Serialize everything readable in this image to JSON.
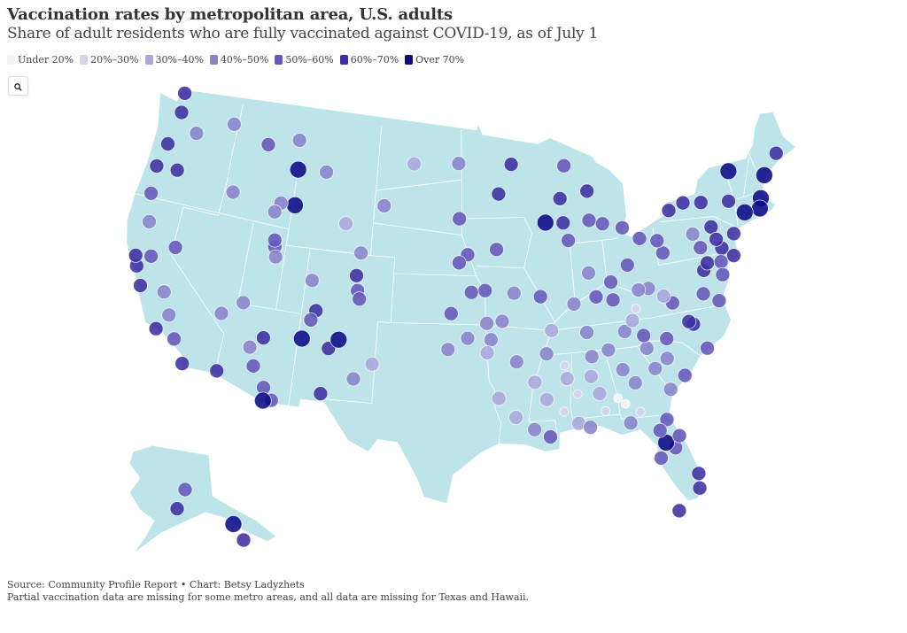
{
  "header": {
    "title": "Vaccination rates by metropolitan area, U.S. adults",
    "subtitle": "Share of adult residents who are fully vaccinated against COVID-19, as of July 1"
  },
  "legend": [
    {
      "label": "Under 20%",
      "color": "#f4f4f8"
    },
    {
      "label": "20%–30%",
      "color": "#d5d4ee"
    },
    {
      "label": "30%–40%",
      "color": "#aba8dd"
    },
    {
      "label": "40%–50%",
      "color": "#8a83cc"
    },
    {
      "label": "50%–60%",
      "color": "#6757b9"
    },
    {
      "label": "60%–70%",
      "color": "#3f2fa1"
    },
    {
      "label": "Over 70%",
      "color": "#0b0a85"
    }
  ],
  "controls": {
    "search_icon": "search-icon"
  },
  "colors": {
    "land": "#bde5e9",
    "borders": "#ffffff"
  },
  "footer": {
    "source": "Source: Community Profile Report • Chart: Betsy Ladyzhets",
    "note": "Partial vaccination data are missing for some metro areas, and all data are missing for Texas and Hawaii."
  },
  "chart_data": {
    "type": "scatter",
    "map": "U.S. metropolitan areas (Albers USA)",
    "value_field": "vaccination bin index into legend",
    "metros": [
      [
        -122.3,
        47.6,
        5
      ],
      [
        -122.7,
        45.5,
        5
      ],
      [
        -122.4,
        37.8,
        5
      ],
      [
        -118.2,
        34.05,
        4
      ],
      [
        -117.2,
        32.7,
        5
      ],
      [
        -121.5,
        38.6,
        4
      ],
      [
        -119.8,
        36.7,
        3
      ],
      [
        -119,
        35.4,
        3
      ],
      [
        -112,
        33.4,
        4
      ],
      [
        -111,
        32.2,
        4
      ],
      [
        -115.1,
        36.2,
        3
      ],
      [
        -119.8,
        39.5,
        4
      ],
      [
        -111.9,
        40.8,
        4
      ],
      [
        -116.2,
        43.6,
        3
      ],
      [
        -117.4,
        47.7,
        3
      ],
      [
        -105,
        39.7,
        5
      ],
      [
        -104.8,
        38.8,
        4
      ],
      [
        -106.6,
        35.1,
        5
      ],
      [
        -105.9,
        35.7,
        6
      ],
      [
        -108.7,
        35.5,
        6
      ],
      [
        -111.6,
        35.2,
        5
      ],
      [
        -108.5,
        45.8,
        3
      ],
      [
        -114,
        46.9,
        4
      ],
      [
        -111,
        45.7,
        6
      ],
      [
        -110.8,
        43.5,
        6
      ],
      [
        -104.8,
        41.1,
        3
      ],
      [
        -106.3,
        42.8,
        2
      ],
      [
        -103.2,
        44.1,
        3
      ],
      [
        -96.7,
        43.5,
        4
      ],
      [
        -96.8,
        46.9,
        3
      ],
      [
        -100.8,
        46.8,
        2
      ],
      [
        -93.3,
        45,
        5
      ],
      [
        -92.1,
        46.8,
        5
      ],
      [
        -93.6,
        41.6,
        4
      ],
      [
        -96,
        41.3,
        4
      ],
      [
        -96.7,
        40.8,
        4
      ],
      [
        -94.6,
        39.1,
        4
      ],
      [
        -97.3,
        37.7,
        4
      ],
      [
        -95.7,
        39,
        4
      ],
      [
        -96,
        36.2,
        3
      ],
      [
        -97.5,
        35.5,
        3
      ],
      [
        -90.2,
        38.6,
        4
      ],
      [
        -93.3,
        37.2,
        3
      ],
      [
        -92.3,
        34.7,
        3
      ],
      [
        -90,
        35.1,
        3
      ],
      [
        -86.8,
        36.2,
        3
      ],
      [
        -83.9,
        36,
        3
      ],
      [
        -85.3,
        35,
        3
      ],
      [
        -84.4,
        33.7,
        3
      ],
      [
        -86.8,
        33.5,
        2
      ],
      [
        -86.3,
        32.4,
        2
      ],
      [
        -90.2,
        32.3,
        2
      ],
      [
        -90.1,
        30,
        4
      ],
      [
        -91.2,
        30.5,
        3
      ],
      [
        -93.7,
        32.5,
        2
      ],
      [
        -88,
        30.7,
        2
      ],
      [
        -87.2,
        30.4,
        3
      ],
      [
        -84.3,
        30.4,
        3
      ],
      [
        -81.7,
        30.3,
        4
      ],
      [
        -81.4,
        28.5,
        4
      ],
      [
        -82.5,
        28,
        4
      ],
      [
        -80.2,
        25.8,
        5
      ],
      [
        -80.1,
        26.7,
        5
      ],
      [
        -82,
        28.9,
        6
      ],
      [
        -81.8,
        24.6,
        5
      ],
      [
        -79.9,
        32.8,
        4
      ],
      [
        -81,
        34,
        3
      ],
      [
        -80.8,
        35.2,
        4
      ],
      [
        -78.6,
        35.8,
        5
      ],
      [
        -78.9,
        36,
        5
      ],
      [
        -77.9,
        34.2,
        4
      ],
      [
        -76.3,
        36.9,
        4
      ],
      [
        -77.4,
        37.5,
        4
      ],
      [
        -77,
        38.9,
        5
      ],
      [
        -76.6,
        39.3,
        5
      ],
      [
        -75.2,
        40,
        5
      ],
      [
        -74,
        40.7,
        5
      ],
      [
        -71.1,
        42.4,
        6
      ],
      [
        -71.4,
        41.8,
        6
      ],
      [
        -72.7,
        41.8,
        6
      ],
      [
        -73.2,
        44.5,
        6
      ],
      [
        -70.3,
        43.7,
        6
      ],
      [
        -68.8,
        44.8,
        5
      ],
      [
        -73.8,
        42.7,
        5
      ],
      [
        -76.1,
        43,
        5
      ],
      [
        -77.6,
        43.2,
        5
      ],
      [
        -78.9,
        42.9,
        5
      ],
      [
        -80,
        40.4,
        4
      ],
      [
        -81.7,
        41.5,
        4
      ],
      [
        -83,
        40,
        4
      ],
      [
        -84.5,
        39.1,
        4
      ],
      [
        -83,
        42.3,
        4
      ],
      [
        -85.7,
        43,
        4
      ],
      [
        -84.6,
        42.7,
        4
      ],
      [
        -86.2,
        39.8,
        3
      ],
      [
        -87.6,
        41.9,
        4
      ],
      [
        -87.9,
        43,
        5
      ],
      [
        -89.4,
        43.1,
        6
      ],
      [
        -88,
        44.5,
        5
      ],
      [
        -87.4,
        46.5,
        4
      ],
      [
        -85.6,
        44.8,
        5
      ],
      [
        -85.8,
        38.3,
        4
      ],
      [
        -84.5,
        38,
        4
      ],
      [
        -81.6,
        38.4,
        3
      ],
      [
        -82.4,
        38.4,
        3
      ],
      [
        -123.1,
        44,
        5
      ],
      [
        -122.9,
        42.3,
        4
      ],
      [
        -121.3,
        44.1,
        5
      ],
      [
        -120.5,
        46.6,
        3
      ],
      [
        -122.5,
        48.8,
        5
      ],
      [
        -122.4,
        40.6,
        3
      ],
      [
        -122.7,
        38.4,
        5
      ],
      [
        -119.7,
        34.4,
        5
      ],
      [
        -121.7,
        36.7,
        5
      ],
      [
        -114.6,
        32.7,
        5
      ],
      [
        -112.5,
        34.5,
        3
      ],
      [
        -113.6,
        37.1,
        3
      ],
      [
        -111.7,
        40.2,
        3
      ],
      [
        -112,
        41.2,
        4
      ],
      [
        -112,
        43.5,
        3
      ],
      [
        -112.4,
        42.9,
        3
      ],
      [
        -111.3,
        47.5,
        3
      ],
      [
        -108.5,
        39.1,
        3
      ],
      [
        -107.9,
        37.3,
        5
      ],
      [
        -104.6,
        38.3,
        4
      ],
      [
        -106.8,
        32.3,
        5
      ],
      [
        -108.2,
        36.7,
        4
      ],
      [
        -110.3,
        31.5,
        4
      ],
      [
        -110.9,
        31.4,
        6
      ],
      [
        -104.5,
        33.4,
        3
      ],
      [
        -103.2,
        34.4,
        2
      ],
      [
        -94.2,
        36.1,
        3
      ],
      [
        -94.5,
        37.1,
        3
      ],
      [
        -92.3,
        38.9,
        3
      ],
      [
        -87.6,
        38,
        3
      ],
      [
        -86.6,
        34.7,
        3
      ],
      [
        -82.4,
        34.8,
        3
      ],
      [
        -81.1,
        32.1,
        3
      ],
      [
        -82,
        33.5,
        3
      ],
      [
        -83.6,
        32.8,
        3
      ],
      [
        -82.3,
        29.7,
        4
      ],
      [
        -81,
        29.2,
        4
      ],
      [
        -82.5,
        35.6,
        4
      ],
      [
        -79.9,
        37.3,
        4
      ],
      [
        -76.9,
        40.3,
        4
      ],
      [
        -75.7,
        41.4,
        5
      ],
      [
        -75.5,
        40.6,
        5
      ],
      [
        -74.4,
        39.4,
        5
      ],
      [
        -75.5,
        39.2,
        4
      ],
      [
        -75.6,
        38.4,
        4
      ],
      [
        -85,
        32,
        0
      ],
      [
        -86,
        31.3,
        1
      ],
      [
        -87.9,
        32.5,
        1
      ],
      [
        -83.5,
        31,
        1
      ],
      [
        -84.5,
        31.6,
        0
      ],
      [
        -89,
        31.5,
        1
      ],
      [
        -88.7,
        34.3,
        1
      ],
      [
        -82.8,
        37.3,
        1
      ],
      [
        -83.2,
        36.6,
        2
      ],
      [
        -80.5,
        37.8,
        2
      ],
      [
        -89.5,
        36.5,
        2
      ],
      [
        -91,
        33.4,
        2
      ],
      [
        -92.5,
        31.3,
        2
      ],
      [
        -88.6,
        33.5,
        2
      ],
      [
        -94.5,
        35.3,
        2
      ],
      [
        -77.3,
        41.2,
        3
      ],
      [
        -80.3,
        41.2,
        4
      ]
    ],
    "alaska": [
      [
        -147.7,
        64.8,
        4
      ],
      [
        -149.9,
        61.2,
        5
      ],
      [
        -134.4,
        58.3,
        6
      ],
      [
        -131.6,
        55.3,
        5
      ]
    ]
  }
}
